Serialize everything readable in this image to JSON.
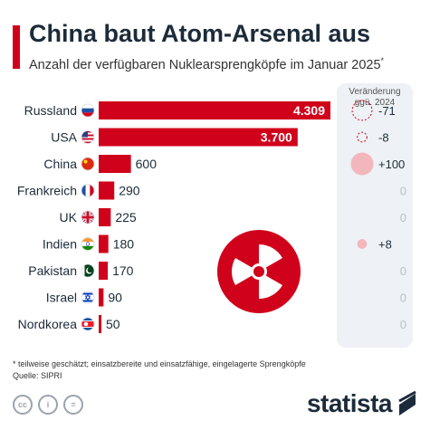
{
  "header": {
    "title": "China baut Atom-Arsenal aus",
    "subtitle": "Anzahl der verfügbaren Nuklearsprengköpfe im Januar 2025",
    "subtitle_mark": "*"
  },
  "change_header": {
    "line1": "Veränderung",
    "line2": "ggü. 2024"
  },
  "chart_data": {
    "type": "bar",
    "orientation": "horizontal",
    "title": "China baut Atom-Arsenal aus",
    "categories": [
      "Russland",
      "USA",
      "China",
      "Frankreich",
      "UK",
      "Indien",
      "Pakistan",
      "Israel",
      "Nordkorea"
    ],
    "values": [
      4309,
      3700,
      600,
      290,
      225,
      180,
      170,
      90,
      50
    ],
    "value_labels": [
      "4.309",
      "3.700",
      "600",
      "290",
      "225",
      "180",
      "170",
      "90",
      "50"
    ],
    "change_vs_2024": [
      -71,
      -8,
      100,
      0,
      0,
      8,
      0,
      0,
      0
    ],
    "change_labels": [
      "-71",
      "-8",
      "+100",
      "0",
      "0",
      "+8",
      "0",
      "0",
      "0"
    ],
    "xlim": [
      0,
      4309
    ],
    "grid": false,
    "colors": {
      "bar": "#d0021b",
      "positive_change": "#f4b6bd",
      "negative_change": "#d0021b",
      "zero_change": "#b8c0c8"
    }
  },
  "footer": {
    "footnote": "* teilweise geschätzt; einsatzbereite und einsatzfähige, eingelagerte Sprengköpfe",
    "source": "Quelle: SIPRI",
    "license_icons": [
      "cc-icon",
      "person-icon",
      "equals-icon"
    ],
    "license_glyphs": [
      "cc",
      "i",
      "="
    ],
    "brand": "statista",
    "brand_icon": "statista-logo-icon"
  },
  "decoration": {
    "icon": "radiation-icon"
  },
  "flags": [
    "russia-flag-icon",
    "usa-flag-icon",
    "china-flag-icon",
    "france-flag-icon",
    "uk-flag-icon",
    "india-flag-icon",
    "pakistan-flag-icon",
    "israel-flag-icon",
    "north-korea-flag-icon"
  ]
}
